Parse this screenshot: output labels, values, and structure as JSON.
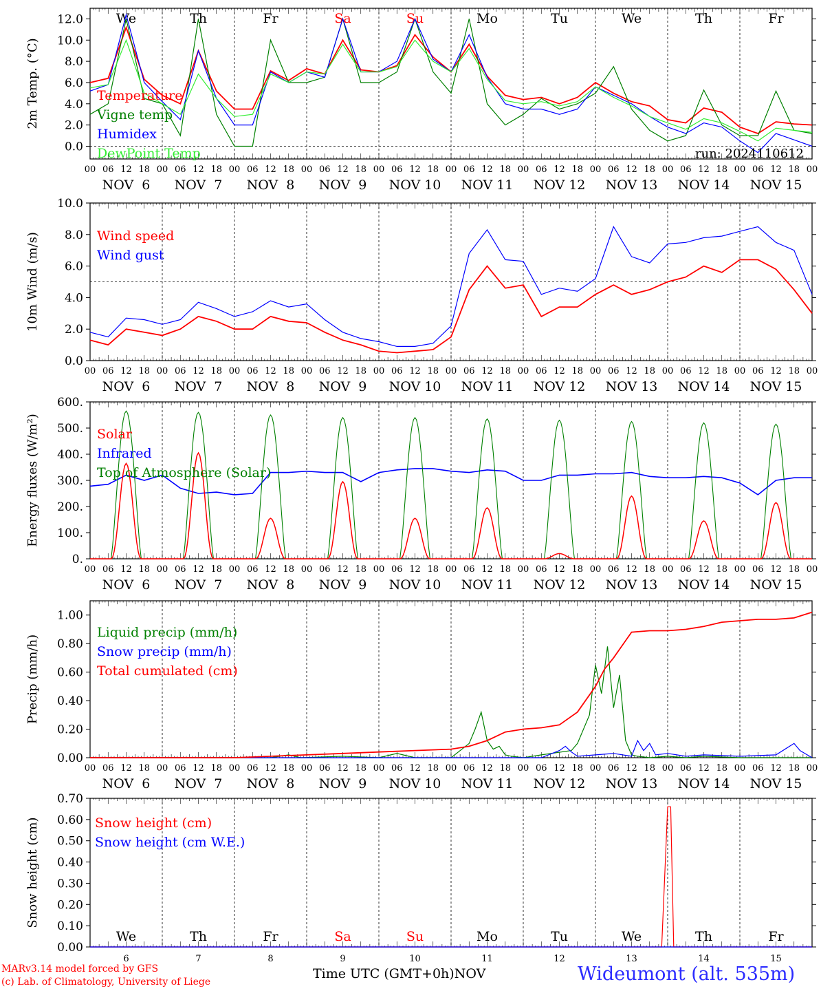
{
  "run_label": "run: 2024110612",
  "station": "Wideumont (alt. 535m)",
  "credit_line1": "MARv3.14 model forced by GFS",
  "credit_line2": "(c) Lab. of Climatology, University of Liege",
  "x_axis_title": "Time UTC (GMT+0h)",
  "month_label": "NOV",
  "days": [
    {
      "num": 6,
      "label": "NOV  6",
      "weekday": "We",
      "weekend": false
    },
    {
      "num": 7,
      "label": "NOV  7",
      "weekday": "Th",
      "weekend": false
    },
    {
      "num": 8,
      "label": "NOV  8",
      "weekday": "Fr",
      "weekend": false
    },
    {
      "num": 9,
      "label": "NOV  9",
      "weekday": "Sa",
      "weekend": true
    },
    {
      "num": 10,
      "label": "NOV 10",
      "weekday": "Su",
      "weekend": true
    },
    {
      "num": 11,
      "label": "NOV 11",
      "weekday": "Mo",
      "weekend": false
    },
    {
      "num": 12,
      "label": "NOV 12",
      "weekday": "Tu",
      "weekend": false
    },
    {
      "num": 13,
      "label": "NOV 13",
      "weekday": "We",
      "weekend": false
    },
    {
      "num": 14,
      "label": "NOV 14",
      "weekday": "Th",
      "weekend": false
    },
    {
      "num": 15,
      "label": "NOV 15",
      "weekday": "Fr",
      "weekend": false
    }
  ],
  "hour_ticks": [
    "00",
    "06",
    "12",
    "18"
  ],
  "colors": {
    "red": "#ff0000",
    "green": "#008000",
    "blue": "#0000ff",
    "lightgreen": "#33ee33",
    "weekend": "#ff0000",
    "station": "#2b2bff"
  },
  "chart_data": [
    {
      "type": "line",
      "name": "temperature",
      "ylabel": "2m Temp. (°C)",
      "ylim": [
        -1.2,
        13.0
      ],
      "yticks": [
        "12.0",
        "10.0",
        "8.0",
        "6.0",
        "4.0",
        "2.0",
        "0.0"
      ],
      "ytick_values": [
        12,
        10,
        8,
        6,
        4,
        2,
        0
      ],
      "ref_line": 0,
      "x_unit": "hours since 2024-11-06 00 UTC",
      "series": [
        {
          "name": "Temperature",
          "color": "#ff0000",
          "x": [
            0,
            6,
            12,
            18,
            24,
            30,
            36,
            42,
            48,
            54,
            60,
            66,
            72,
            78,
            84,
            90,
            96,
            102,
            108,
            114,
            120,
            126,
            132,
            138,
            144,
            150,
            156,
            162,
            168,
            174,
            180,
            186,
            192,
            198,
            204,
            210,
            216,
            222,
            228,
            234,
            240
          ],
          "y": [
            6.0,
            6.4,
            11.2,
            6.3,
            4.8,
            4.0,
            9.0,
            5.2,
            3.5,
            3.5,
            7.1,
            6.2,
            7.3,
            6.8,
            10.0,
            7.2,
            7.0,
            7.6,
            10.5,
            8.4,
            7.0,
            9.6,
            6.6,
            4.8,
            4.4,
            4.6,
            4.0,
            4.6,
            6.0,
            5.0,
            4.2,
            3.8,
            2.5,
            2.2,
            3.6,
            3.2,
            1.8,
            1.2,
            2.3,
            2.1,
            2.0
          ]
        },
        {
          "name": "Vigne temp",
          "color": "#008000",
          "x": [
            0,
            6,
            12,
            18,
            24,
            30,
            36,
            42,
            48,
            54,
            60,
            66,
            72,
            78,
            84,
            90,
            96,
            102,
            108,
            114,
            120,
            126,
            132,
            138,
            144,
            150,
            156,
            162,
            168,
            174,
            180,
            186,
            192,
            198,
            204,
            210,
            216,
            222,
            228,
            234,
            240
          ],
          "y": [
            3.0,
            4.0,
            12.0,
            4.5,
            4.0,
            1.0,
            12.0,
            3.0,
            0.0,
            0.0,
            10.0,
            6.0,
            6.0,
            6.5,
            12.0,
            6.0,
            6.0,
            7.0,
            12.0,
            7.0,
            5.0,
            12.0,
            4.0,
            2.0,
            3.0,
            4.5,
            3.5,
            4.0,
            5.0,
            7.5,
            3.5,
            1.5,
            0.5,
            1.0,
            5.3,
            2.0,
            1.0,
            1.0,
            5.2,
            1.5,
            1.2
          ]
        },
        {
          "name": "Humidex",
          "color": "#0000ff",
          "x": [
            0,
            6,
            12,
            18,
            24,
            30,
            36,
            42,
            48,
            54,
            60,
            66,
            72,
            78,
            84,
            90,
            96,
            102,
            108,
            114,
            120,
            126,
            132,
            138,
            144,
            150,
            156,
            162,
            168,
            174,
            180,
            186,
            192,
            198,
            204,
            210,
            216,
            222,
            228,
            234,
            240
          ],
          "y": [
            5.2,
            5.8,
            12.4,
            6.0,
            4.2,
            2.5,
            9.0,
            4.5,
            2.0,
            2.0,
            7.0,
            6.0,
            7.0,
            6.5,
            12.0,
            7.0,
            7.0,
            8.0,
            12.0,
            8.2,
            7.0,
            10.5,
            6.5,
            4.0,
            3.5,
            3.5,
            3.0,
            3.5,
            5.6,
            4.8,
            4.0,
            2.8,
            1.8,
            1.2,
            2.2,
            1.8,
            0.5,
            -0.6,
            1.2,
            0.6,
            0.0
          ]
        },
        {
          "name": "DewPoint Temp",
          "color": "#33ee33",
          "x": [
            0,
            6,
            12,
            18,
            24,
            30,
            36,
            42,
            48,
            54,
            60,
            66,
            72,
            78,
            84,
            90,
            96,
            102,
            108,
            114,
            120,
            126,
            132,
            138,
            144,
            150,
            156,
            162,
            168,
            174,
            180,
            186,
            192,
            198,
            204,
            210,
            216,
            222,
            228,
            234,
            240
          ],
          "y": [
            5.5,
            5.8,
            10.0,
            5.0,
            4.0,
            3.0,
            6.8,
            4.5,
            2.8,
            3.0,
            6.8,
            6.0,
            7.0,
            6.8,
            9.6,
            7.0,
            7.0,
            7.5,
            10.0,
            8.0,
            7.0,
            9.2,
            6.3,
            4.3,
            4.0,
            4.2,
            3.8,
            4.2,
            5.6,
            4.6,
            3.8,
            2.8,
            2.2,
            1.6,
            2.6,
            2.2,
            1.4,
            0.5,
            1.7,
            1.5,
            1.3
          ]
        }
      ]
    },
    {
      "type": "line",
      "name": "wind",
      "ylabel": "10m Wind (m/s)",
      "ylim": [
        0,
        10
      ],
      "yticks": [
        "10.0",
        "8.0",
        "6.0",
        "4.0",
        "2.0",
        "0.0"
      ],
      "ytick_values": [
        10,
        8,
        6,
        4,
        2,
        0
      ],
      "ref_line": 5,
      "x_unit": "hours since 2024-11-06 00 UTC",
      "series": [
        {
          "name": "Wind speed",
          "color": "#ff0000",
          "x": [
            0,
            6,
            12,
            18,
            24,
            30,
            36,
            42,
            48,
            54,
            60,
            66,
            72,
            78,
            84,
            90,
            96,
            102,
            108,
            114,
            120,
            126,
            132,
            138,
            144,
            150,
            156,
            162,
            168,
            174,
            180,
            186,
            192,
            198,
            204,
            210,
            216,
            222,
            228,
            234,
            240
          ],
          "y": [
            1.3,
            1.0,
            2.0,
            1.8,
            1.6,
            2.0,
            2.8,
            2.5,
            2.0,
            2.0,
            2.8,
            2.5,
            2.4,
            1.8,
            1.3,
            1.0,
            0.6,
            0.5,
            0.6,
            0.7,
            1.5,
            4.5,
            6.0,
            4.6,
            4.8,
            2.8,
            3.4,
            3.4,
            4.2,
            4.8,
            4.2,
            4.5,
            5.0,
            5.3,
            6.0,
            5.6,
            6.4,
            6.4,
            5.8,
            4.5,
            3.0
          ]
        },
        {
          "name": "Wind gust",
          "color": "#0000ff",
          "x": [
            0,
            6,
            12,
            18,
            24,
            30,
            36,
            42,
            48,
            54,
            60,
            66,
            72,
            78,
            84,
            90,
            96,
            102,
            108,
            114,
            120,
            126,
            132,
            138,
            144,
            150,
            156,
            162,
            168,
            174,
            180,
            186,
            192,
            198,
            204,
            210,
            216,
            222,
            228,
            234,
            240
          ],
          "y": [
            1.8,
            1.5,
            2.7,
            2.6,
            2.3,
            2.6,
            3.7,
            3.3,
            2.8,
            3.1,
            3.8,
            3.4,
            3.6,
            2.6,
            1.8,
            1.4,
            1.2,
            0.9,
            0.9,
            1.1,
            2.2,
            6.8,
            8.3,
            6.4,
            6.3,
            4.2,
            4.6,
            4.4,
            5.2,
            8.5,
            6.6,
            6.2,
            7.4,
            7.5,
            7.8,
            7.9,
            8.2,
            8.5,
            7.5,
            7.0,
            4.2
          ]
        }
      ]
    },
    {
      "type": "line",
      "name": "energy",
      "ylabel": "Energy fluxes (W/m²)",
      "ylim": [
        0,
        600
      ],
      "yticks": [
        "600.",
        "500.",
        "400.",
        "300.",
        "200.",
        "100.",
        "0."
      ],
      "ytick_values": [
        600,
        500,
        400,
        300,
        200,
        100,
        0
      ],
      "diurnal": {
        "day_start_hour": 7,
        "day_end_hour": 17,
        "toa_peaks": [
          565,
          560,
          550,
          540,
          540,
          535,
          530,
          525,
          520,
          515
        ],
        "solar_peaks": [
          365,
          405,
          155,
          295,
          155,
          195,
          20,
          240,
          145,
          215
        ]
      },
      "series": [
        {
          "name": "Solar",
          "color": "#ff0000"
        },
        {
          "name": "Infrared",
          "color": "#0000ff",
          "x": [
            0,
            6,
            12,
            18,
            24,
            30,
            36,
            42,
            48,
            54,
            60,
            66,
            72,
            78,
            84,
            90,
            96,
            102,
            108,
            114,
            120,
            126,
            132,
            138,
            144,
            150,
            156,
            162,
            168,
            174,
            180,
            186,
            192,
            198,
            204,
            210,
            216,
            222,
            228,
            234,
            240
          ],
          "y": [
            278,
            285,
            320,
            300,
            320,
            270,
            250,
            255,
            245,
            250,
            330,
            330,
            335,
            330,
            330,
            295,
            330,
            340,
            345,
            345,
            335,
            330,
            340,
            335,
            300,
            300,
            320,
            320,
            325,
            325,
            330,
            315,
            310,
            310,
            315,
            310,
            290,
            245,
            300,
            310,
            310
          ]
        },
        {
          "name": "Top of Atmosphere (Solar)",
          "color": "#008000"
        }
      ]
    },
    {
      "type": "line",
      "name": "precip",
      "ylabel": "Precip (mm/h)",
      "ylim": [
        0,
        1.1
      ],
      "yticks": [
        "1.00",
        "0.80",
        "0.60",
        "0.40",
        "0.20",
        "0.00"
      ],
      "ytick_values": [
        1.0,
        0.8,
        0.6,
        0.4,
        0.2,
        0.0
      ],
      "series": [
        {
          "name": "Liquid precip (mm/h)",
          "color": "#008000",
          "x": [
            0,
            60,
            66,
            70,
            84,
            96,
            102,
            108,
            120,
            126,
            128,
            130,
            132,
            134,
            136,
            138,
            140,
            144,
            150,
            160,
            162,
            166,
            168,
            170,
            172,
            174,
            176,
            178,
            180,
            182,
            186,
            192,
            198,
            204,
            216,
            240
          ],
          "y": [
            0,
            0,
            0.02,
            0,
            0.01,
            0,
            0.03,
            0,
            0,
            0.1,
            0.2,
            0.32,
            0.12,
            0.06,
            0.08,
            0.02,
            0.01,
            0,
            0.02,
            0.05,
            0.1,
            0.3,
            0.65,
            0.45,
            0.78,
            0.35,
            0.58,
            0.12,
            0.02,
            0.01,
            0,
            0.01,
            0,
            0.01,
            0,
            0
          ]
        },
        {
          "name": "Snow precip (mm/h)",
          "color": "#0000ff",
          "x": [
            0,
            150,
            156,
            158,
            160,
            162,
            168,
            174,
            180,
            182,
            184,
            186,
            188,
            192,
            198,
            204,
            216,
            228,
            234,
            236,
            240
          ],
          "y": [
            0,
            0,
            0.05,
            0.08,
            0.04,
            0.01,
            0.02,
            0.03,
            0.01,
            0.12,
            0.05,
            0.1,
            0.02,
            0.03,
            0.01,
            0.02,
            0.01,
            0.02,
            0.1,
            0.05,
            0
          ]
        },
        {
          "name": "Total cumulated (cm)",
          "color": "#ff0000",
          "x": [
            0,
            48,
            60,
            72,
            84,
            96,
            108,
            120,
            126,
            132,
            138,
            144,
            150,
            156,
            162,
            168,
            171,
            174,
            178,
            180,
            186,
            192,
            198,
            204,
            210,
            216,
            222,
            228,
            234,
            240
          ],
          "y": [
            0,
            0,
            0.01,
            0.02,
            0.03,
            0.04,
            0.05,
            0.06,
            0.08,
            0.12,
            0.18,
            0.2,
            0.21,
            0.23,
            0.32,
            0.5,
            0.62,
            0.7,
            0.82,
            0.88,
            0.89,
            0.89,
            0.9,
            0.92,
            0.95,
            0.96,
            0.97,
            0.97,
            0.98,
            1.02
          ]
        }
      ]
    },
    {
      "type": "line",
      "name": "snow",
      "ylabel": "Snow height (cm)",
      "ylim": [
        0,
        0.7
      ],
      "yticks": [
        "0.70",
        "0.60",
        "0.50",
        "0.40",
        "0.30",
        "0.20",
        "0.10",
        "0.00"
      ],
      "ytick_values": [
        0.7,
        0.6,
        0.5,
        0.4,
        0.3,
        0.2,
        0.1,
        0.0
      ],
      "series": [
        {
          "name": "Snow height (cm)",
          "color": "#ff0000",
          "x": [
            0,
            190,
            192,
            193,
            194,
            240
          ],
          "y": [
            0,
            0,
            0.66,
            0.66,
            0,
            0
          ]
        },
        {
          "name": "Snow height (cm W.E.)",
          "color": "#0000ff",
          "x": [
            0,
            240
          ],
          "y": [
            0,
            0
          ]
        }
      ]
    }
  ]
}
